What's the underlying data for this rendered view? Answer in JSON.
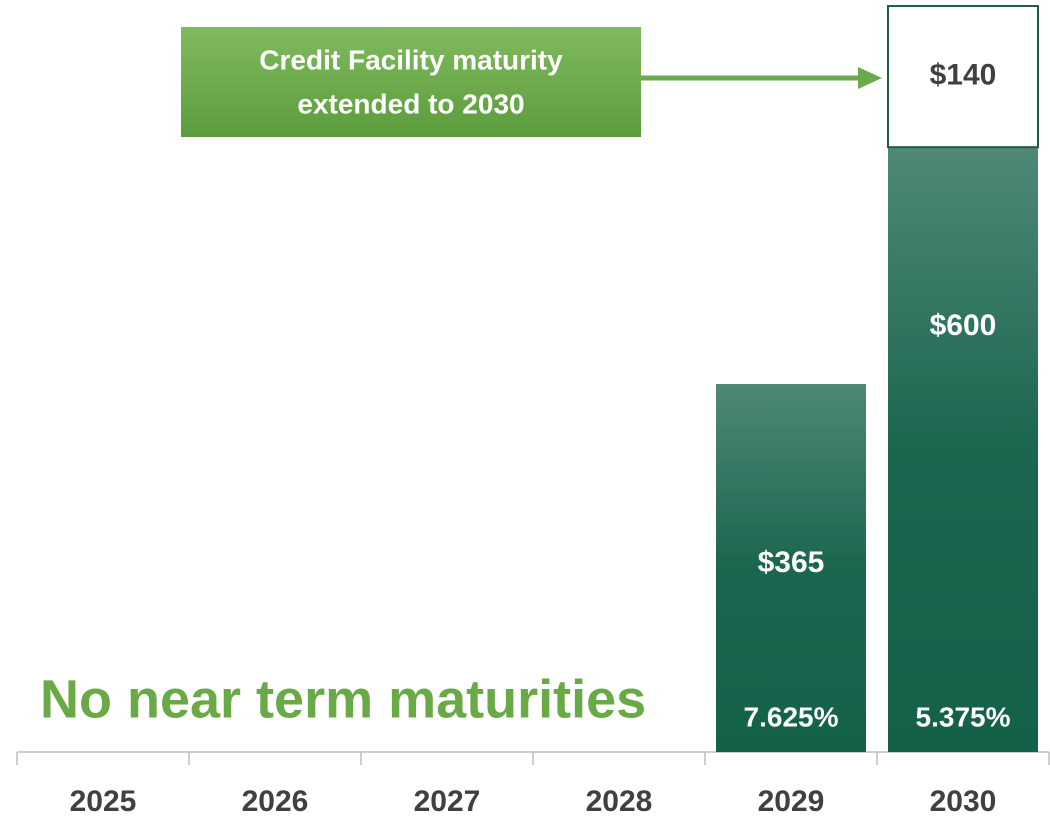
{
  "chart_data": {
    "type": "stacked-bar",
    "headline": "No near term maturities",
    "callout": [
      "Credit Facility maturity",
      "extended to 2030"
    ],
    "categories": [
      "2025",
      "2026",
      "2027",
      "2028",
      "2029",
      "2030"
    ],
    "series": [
      {
        "color": "#14614a",
        "values": [
          null,
          null,
          null,
          null,
          365,
          600
        ],
        "value_labels": [
          null,
          null,
          null,
          null,
          "$365",
          "$600"
        ]
      },
      {
        "color": "#ffffff",
        "values": [
          null,
          null,
          null,
          null,
          null,
          140
        ],
        "value_labels": [
          null,
          null,
          null,
          null,
          null,
          "$140"
        ]
      }
    ],
    "rates": [
      null,
      null,
      null,
      null,
      "7.625%",
      "5.375%"
    ],
    "ylim": [
      0,
      745
    ]
  }
}
